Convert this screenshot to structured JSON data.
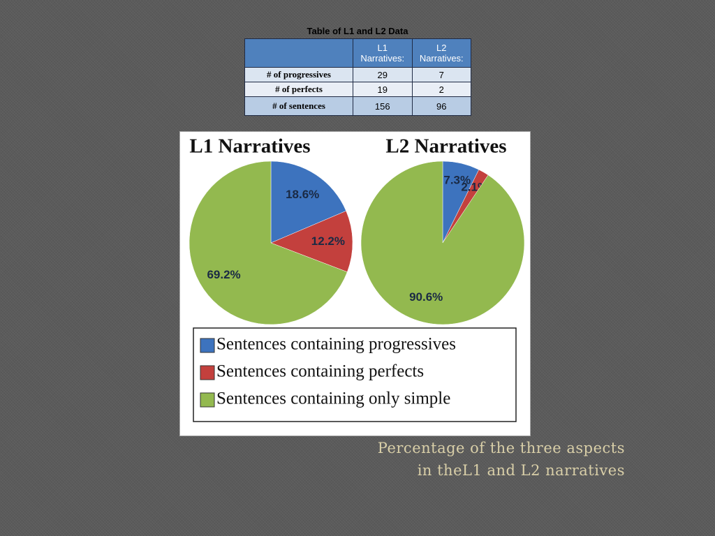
{
  "table": {
    "title": "Table of L1 and L2 Data",
    "header": [
      "L1 Narratives:",
      "L2 Narratives:"
    ],
    "rows": [
      [
        "# of progressives",
        29,
        7
      ],
      [
        "# of perfects",
        19,
        2
      ],
      [
        "# of sentences",
        156,
        96
      ]
    ]
  },
  "chart_data": [
    {
      "type": "pie",
      "title": "L1 Narratives",
      "categories": [
        "Sentences containing progressives",
        "Sentences containing perfects",
        "Sentences containing only simple"
      ],
      "values": [
        18.6,
        12.2,
        69.2
      ],
      "value_labels": [
        "18.6%",
        "12.2%",
        "69.2%"
      ],
      "colors": [
        "#3d73be",
        "#c3403d",
        "#93b94f"
      ]
    },
    {
      "type": "pie",
      "title": "L2 Narratives",
      "categories": [
        "Sentences containing progressives",
        "Sentences containing perfects",
        "Sentences containing only simple"
      ],
      "values": [
        7.3,
        2.1,
        90.6
      ],
      "value_labels": [
        "7.3%",
        "2.1%",
        "90.6%"
      ],
      "colors": [
        "#3d73be",
        "#c3403d",
        "#93b94f"
      ]
    }
  ],
  "caption": [
    "Percentage of the three aspects",
    "in theL1 and L2 narratives"
  ]
}
